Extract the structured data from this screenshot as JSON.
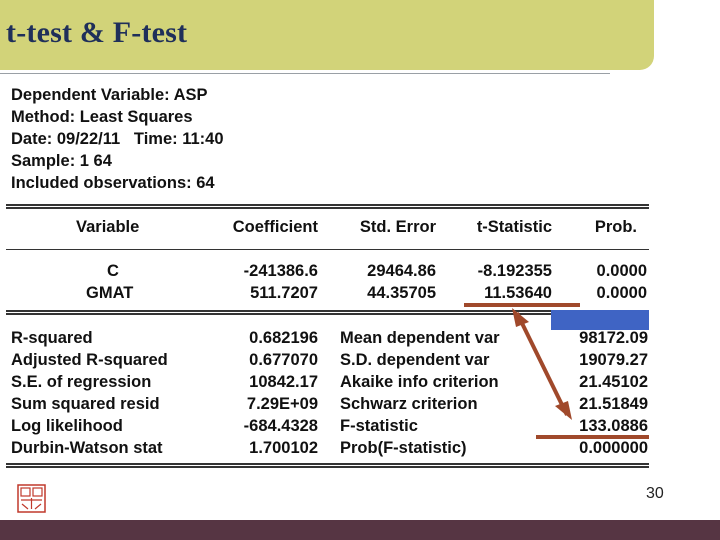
{
  "slide": {
    "title": "t-test & F-test",
    "page_number": "30"
  },
  "header": {
    "dependent_variable": "Dependent Variable: ASP",
    "method": "Method: Least Squares",
    "date_time": "Date: 09/22/11   Time: 11:40",
    "sample": "Sample: 1 64",
    "included_observations": "Included observations: 64"
  },
  "coef_table": {
    "columns": [
      "Variable",
      "Coefficient",
      "Std. Error",
      "t-Statistic",
      "Prob."
    ],
    "rows": [
      [
        "C",
        "-241386.6",
        "29464.86",
        "-8.192355",
        "0.0000"
      ],
      [
        "GMAT",
        "511.7207",
        "44.35705",
        "11.53640",
        "0.0000"
      ]
    ]
  },
  "stats": [
    {
      "label": "R-squared",
      "value": "0.682196",
      "label2": "Mean dependent var",
      "value2": "98172.09"
    },
    {
      "label": "Adjusted R-squared",
      "value": "0.677070",
      "label2": "S.D. dependent var",
      "value2": "19079.27"
    },
    {
      "label": "S.E. of regression",
      "value": "10842.17",
      "label2": "Akaike info criterion",
      "value2": "21.45102"
    },
    {
      "label": "Sum squared resid",
      "value": "7.29E+09",
      "label2": "Schwarz criterion",
      "value2": "21.51849"
    },
    {
      "label": "Log likelihood",
      "value": "-684.4328",
      "label2": "F-statistic",
      "value2": "133.0886"
    },
    {
      "label": "Durbin-Watson stat",
      "value": "1.700102",
      "label2": "Prob(F-statistic)",
      "value2": "0.000000"
    }
  ],
  "colors": {
    "title_bar": "#d2d379",
    "title_text": "#1f2f5a",
    "annotation": "#a0492b",
    "highlight_block": "#3f64c4",
    "footer": "#563543"
  }
}
